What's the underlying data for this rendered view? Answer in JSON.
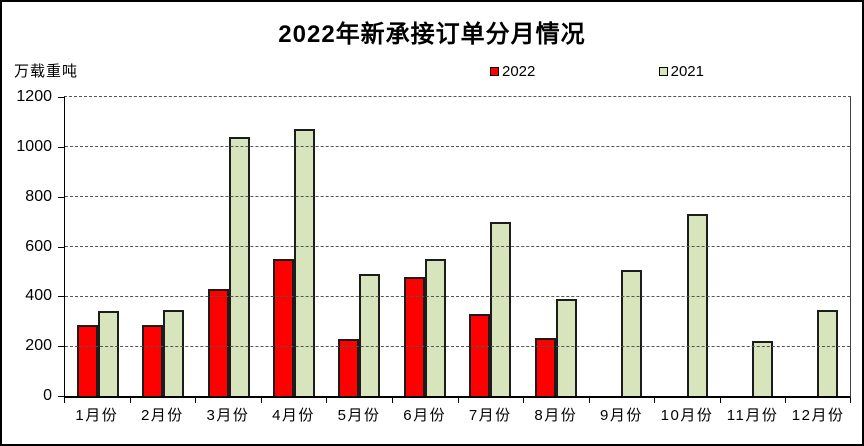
{
  "title": "2022年新承接订单分月情况",
  "y_unit_label": "万载重吨",
  "legend": [
    {
      "label": "2022",
      "color": "#ff0000"
    },
    {
      "label": "2021",
      "color": "#d8e4bc"
    }
  ],
  "chart_data": {
    "type": "bar",
    "title": "2022年新承接订单分月情况",
    "ylabel": "万载重吨",
    "xlabel": "",
    "categories": [
      "1月份",
      "2月份",
      "3月份",
      "4月份",
      "5月份",
      "6月份",
      "7月份",
      "8月份",
      "9月份",
      "10月份",
      "11月份",
      "12月份"
    ],
    "series": [
      {
        "name": "2022",
        "color": "#ff0000",
        "values": [
          285,
          285,
          430,
          548,
          230,
          476,
          330,
          232,
          null,
          null,
          null,
          null
        ]
      },
      {
        "name": "2021",
        "color": "#d8e4bc",
        "values": [
          340,
          345,
          1040,
          1070,
          490,
          550,
          700,
          390,
          505,
          730,
          220,
          345
        ]
      }
    ],
    "ylim": [
      0,
      1200
    ],
    "yticks": [
      0,
      200,
      400,
      600,
      800,
      1000,
      1200
    ],
    "grid": true,
    "gridline_style": "dashed",
    "legend_position": "top"
  }
}
